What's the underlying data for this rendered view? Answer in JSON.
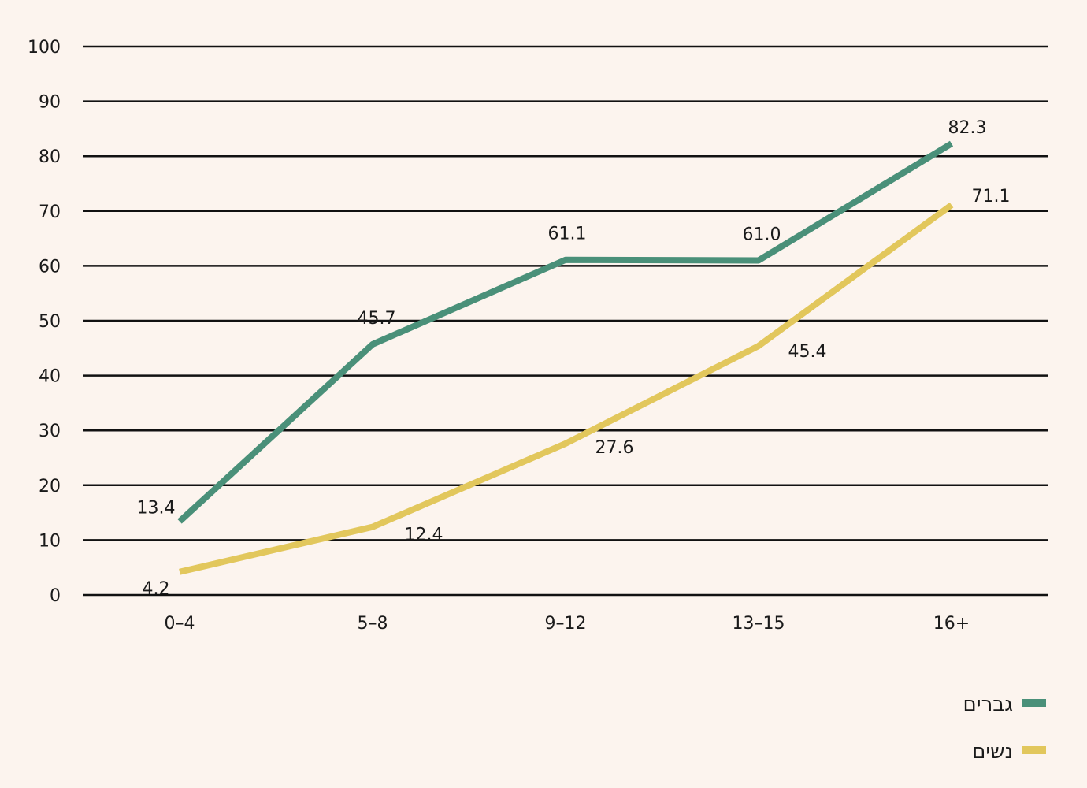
{
  "chart_data": {
    "type": "line",
    "categories": [
      "0–4",
      "5–8",
      "9–12",
      "13–15",
      "16+"
    ],
    "ylim": [
      0,
      100
    ],
    "yticks": [
      0,
      10,
      20,
      30,
      40,
      50,
      60,
      70,
      80,
      90,
      100
    ],
    "grid": true,
    "legend_position": "bottom-right",
    "series": [
      {
        "name": "גברים",
        "color": "#4a9079",
        "values": [
          13.4,
          45.7,
          61.1,
          61.0,
          82.3
        ],
        "labels": [
          "13.4",
          "45.7",
          "61.1",
          "61.0",
          "82.3"
        ]
      },
      {
        "name": "נשים",
        "color": "#e2c75c",
        "values": [
          4.2,
          12.4,
          27.6,
          45.4,
          71.1
        ],
        "labels": [
          "4.2",
          "12.4",
          "27.6",
          "45.4",
          "71.1"
        ]
      }
    ]
  }
}
